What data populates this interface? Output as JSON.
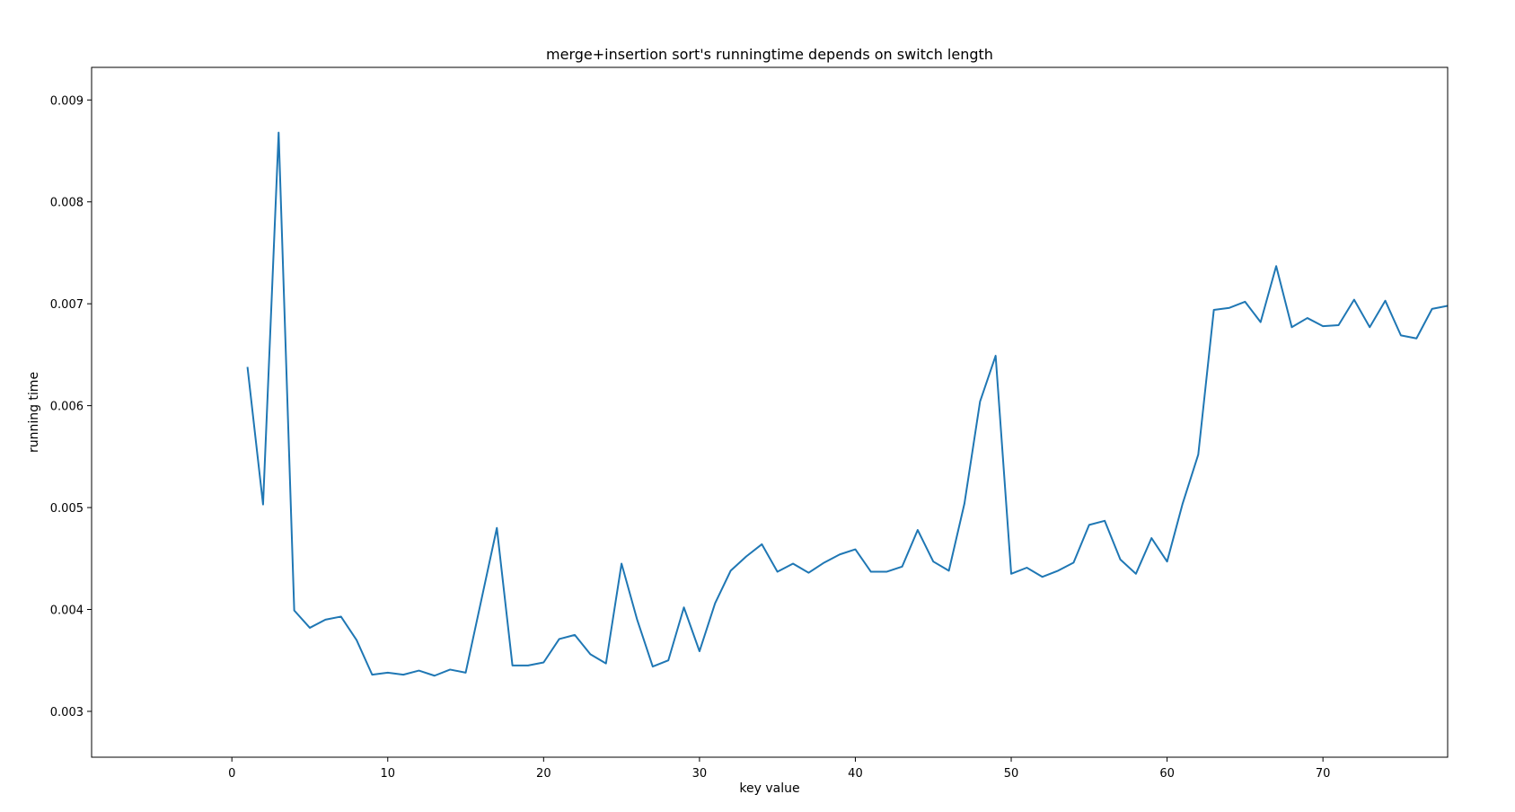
{
  "chart_data": {
    "type": "line",
    "title": "merge+insertion sort's runningtime depends on switch length",
    "xlabel": "key value",
    "ylabel": "running time",
    "xlim": [
      -9,
      78
    ],
    "ylim": [
      0.00255,
      0.00932
    ],
    "x_ticks": [
      0,
      10,
      20,
      30,
      40,
      50,
      60,
      70
    ],
    "x_tick_labels": [
      "0",
      "10",
      "20",
      "30",
      "40",
      "50",
      "60",
      "70"
    ],
    "y_ticks": [
      0.003,
      0.004,
      0.005,
      0.006,
      0.007,
      0.008,
      0.009
    ],
    "y_tick_labels": [
      "0.003",
      "0.004",
      "0.005",
      "0.006",
      "0.007",
      "0.008",
      "0.009"
    ],
    "grid": false,
    "series": [
      {
        "color": "#1f77b4",
        "x": [
          1,
          2,
          3,
          4,
          5,
          6,
          7,
          8,
          9,
          10,
          11,
          12,
          13,
          14,
          15,
          16,
          17,
          18,
          19,
          20,
          21,
          22,
          23,
          24,
          25,
          26,
          27,
          28,
          29,
          30,
          31,
          32,
          33,
          34,
          35,
          36,
          37,
          38,
          39,
          40,
          41,
          42,
          43,
          44,
          45,
          46,
          47,
          48,
          49,
          50,
          51,
          52,
          53,
          54,
          55,
          56,
          57,
          58,
          59,
          60,
          61,
          62,
          63,
          64,
          65,
          66,
          67,
          68,
          69,
          70,
          71,
          72,
          73,
          74,
          75,
          76,
          77,
          78
        ],
        "values": [
          0.00638,
          0.00503,
          0.00868,
          0.00399,
          0.00382,
          0.0039,
          0.00393,
          0.0037,
          0.00336,
          0.00338,
          0.00336,
          0.0034,
          0.00335,
          0.00341,
          0.00338,
          0.00409,
          0.0048,
          0.00345,
          0.00345,
          0.00348,
          0.00371,
          0.00375,
          0.00356,
          0.00347,
          0.00445,
          0.0039,
          0.00344,
          0.0035,
          0.00402,
          0.00359,
          0.00406,
          0.00438,
          0.00452,
          0.00464,
          0.00437,
          0.00445,
          0.00436,
          0.00446,
          0.00454,
          0.00459,
          0.00437,
          0.00437,
          0.00442,
          0.00478,
          0.00447,
          0.00438,
          0.00504,
          0.00604,
          0.00649,
          0.00435,
          0.00441,
          0.00432,
          0.00438,
          0.00446,
          0.00483,
          0.00487,
          0.00449,
          0.00435,
          0.0047,
          0.00447,
          0.00504,
          0.00552,
          0.00694,
          0.00696,
          0.00702,
          0.00682,
          0.00737,
          0.00677,
          0.00686,
          0.00678,
          0.00679,
          0.00704,
          0.00677,
          0.00703,
          0.00669,
          0.00666,
          0.00695,
          0.00698
        ]
      }
    ]
  }
}
